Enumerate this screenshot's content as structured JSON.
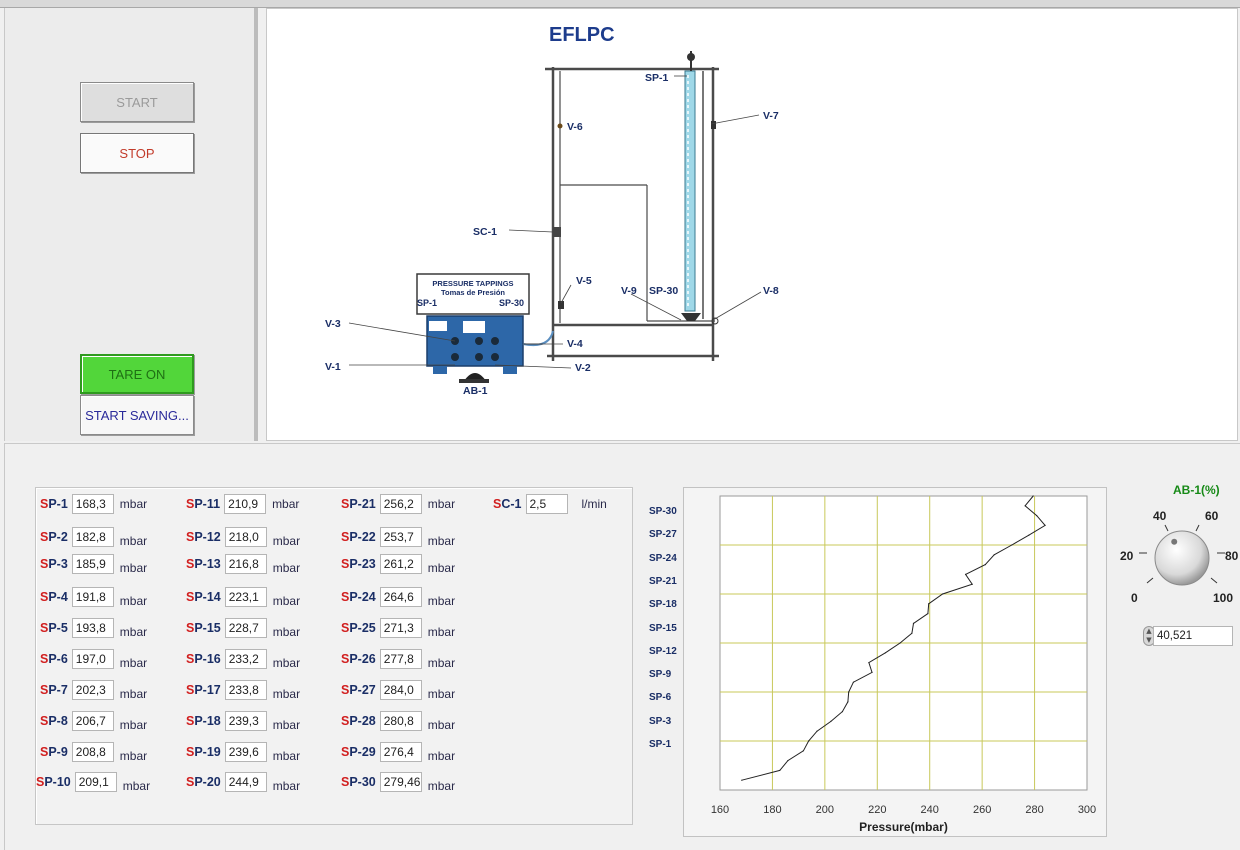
{
  "controls": {
    "start_label": "START",
    "stop_label": "STOP",
    "tare_label": "TARE ON",
    "save_label": "START SAVING..."
  },
  "diagram": {
    "title": "EFLPC",
    "box_title": "PRESSURE TAPPINGS",
    "box_subtitle": "Tomas de Presión",
    "labels": {
      "sp1_top": "SP-1",
      "sp30": "SP-30",
      "box_sp1": "SP-1",
      "box_sp30": "SP-30",
      "v1": "V-1",
      "v2": "V-2",
      "v3": "V-3",
      "v4": "V-4",
      "v5": "V-5",
      "v6": "V-6",
      "v7": "V-7",
      "v8": "V-8",
      "v9": "V-9",
      "sc1": "SC-1",
      "ab1": "AB-1"
    }
  },
  "readings": {
    "unit": "mbar",
    "items": [
      {
        "label": "SP-1",
        "value": "168,3"
      },
      {
        "label": "SP-2",
        "value": "182,8"
      },
      {
        "label": "SP-3",
        "value": "185,9"
      },
      {
        "label": "SP-4",
        "value": "191,8"
      },
      {
        "label": "SP-5",
        "value": "193,8"
      },
      {
        "label": "SP-6",
        "value": "197,0"
      },
      {
        "label": "SP-7",
        "value": "202,3"
      },
      {
        "label": "SP-8",
        "value": "206,7"
      },
      {
        "label": "SP-9",
        "value": "208,8"
      },
      {
        "label": "SP-10",
        "value": "209,1"
      },
      {
        "label": "SP-11",
        "value": "210,9"
      },
      {
        "label": "SP-12",
        "value": "218,0"
      },
      {
        "label": "SP-13",
        "value": "216,8"
      },
      {
        "label": "SP-14",
        "value": "223,1"
      },
      {
        "label": "SP-15",
        "value": "228,7"
      },
      {
        "label": "SP-16",
        "value": "233,2"
      },
      {
        "label": "SP-17",
        "value": "233,8"
      },
      {
        "label": "SP-18",
        "value": "239,3"
      },
      {
        "label": "SP-19",
        "value": "239,6"
      },
      {
        "label": "SP-20",
        "value": "244,9"
      },
      {
        "label": "SP-21",
        "value": "256,2"
      },
      {
        "label": "SP-22",
        "value": "253,7"
      },
      {
        "label": "SP-23",
        "value": "261,2"
      },
      {
        "label": "SP-24",
        "value": "264,6"
      },
      {
        "label": "SP-25",
        "value": "271,3"
      },
      {
        "label": "SP-26",
        "value": "277,8"
      },
      {
        "label": "SP-27",
        "value": "284,0"
      },
      {
        "label": "SP-28",
        "value": "280,8"
      },
      {
        "label": "SP-29",
        "value": "276,4"
      },
      {
        "label": "SP-30",
        "value": "279,46"
      }
    ],
    "flow": {
      "label": "SC-1",
      "value": "2,5",
      "unit": "l/min"
    }
  },
  "chart_data": {
    "type": "line",
    "xlabel": "Pressure(mbar)",
    "xlim": [
      160,
      300
    ],
    "xticks": [
      "160",
      "180",
      "200",
      "220",
      "240",
      "260",
      "280",
      "300"
    ],
    "ylabels": [
      "SP-30",
      "SP-27",
      "SP-24",
      "SP-21",
      "SP-18",
      "SP-15",
      "SP-12",
      "SP-9",
      "SP-6",
      "SP-3",
      "SP-1"
    ],
    "grid": true,
    "x": [
      168.3,
      182.8,
      185.9,
      191.8,
      193.8,
      197.0,
      202.3,
      206.7,
      208.8,
      209.1,
      210.9,
      218.0,
      216.8,
      223.1,
      228.7,
      233.2,
      233.8,
      239.3,
      239.6,
      244.9,
      256.2,
      253.7,
      261.2,
      264.6,
      271.3,
      277.8,
      284.0,
      280.8,
      276.4,
      279.46
    ],
    "y": [
      1,
      2,
      3,
      4,
      5,
      6,
      7,
      8,
      9,
      10,
      11,
      12,
      13,
      14,
      15,
      16,
      17,
      18,
      19,
      20,
      21,
      22,
      23,
      24,
      25,
      26,
      27,
      28,
      29,
      30
    ]
  },
  "knob": {
    "title": "AB-1(%)",
    "scale": [
      "0",
      "20",
      "40",
      "60",
      "80",
      "100"
    ],
    "value": "40,521",
    "level": 40.521
  }
}
